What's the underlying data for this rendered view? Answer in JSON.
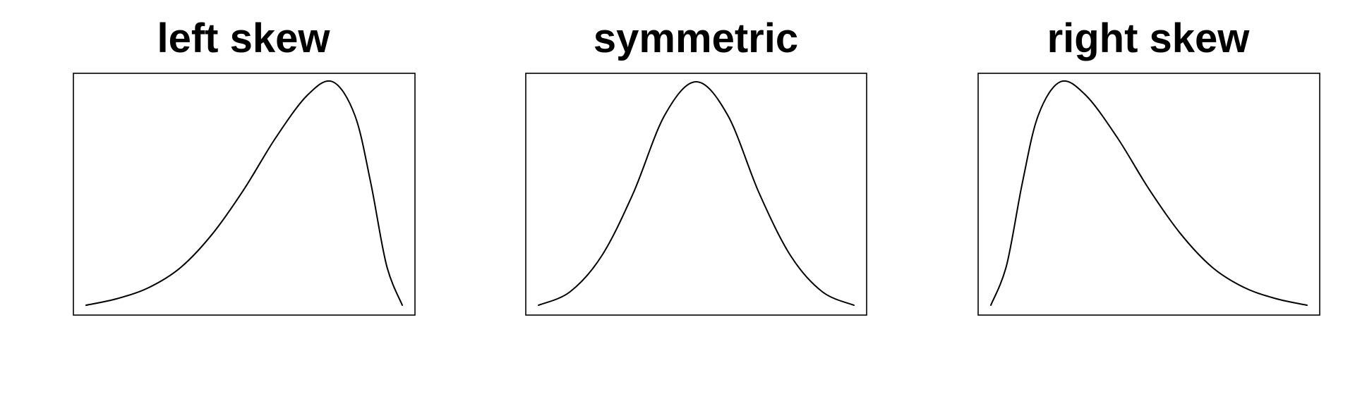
{
  "chart_data": [
    {
      "type": "line",
      "title": "left skew",
      "xlabel": "",
      "ylabel": "",
      "axes_shown": false,
      "grid": false,
      "x": [
        0,
        0.1,
        0.2,
        0.3,
        0.4,
        0.5,
        0.6,
        0.7,
        0.78,
        0.85,
        0.9,
        0.95,
        1
      ],
      "series": [
        {
          "values": [
            0.0,
            0.03,
            0.08,
            0.17,
            0.32,
            0.52,
            0.75,
            0.94,
            1.0,
            0.85,
            0.55,
            0.18,
            0.0
          ]
        }
      ],
      "ylim": [
        0,
        1
      ],
      "line_color": "#000000"
    },
    {
      "type": "line",
      "title": "symmetric",
      "xlabel": "",
      "ylabel": "",
      "axes_shown": false,
      "grid": false,
      "x": [
        0,
        0.1,
        0.2,
        0.3,
        0.4,
        0.5,
        0.6,
        0.7,
        0.8,
        0.9,
        1
      ],
      "series": [
        {
          "values": [
            0.0,
            0.06,
            0.22,
            0.5,
            0.85,
            1.0,
            0.85,
            0.5,
            0.22,
            0.06,
            0.0
          ]
        }
      ],
      "ylim": [
        0,
        1
      ],
      "line_color": "#000000"
    },
    {
      "type": "line",
      "title": "right skew",
      "xlabel": "",
      "ylabel": "",
      "axes_shown": false,
      "grid": false,
      "x": [
        0,
        0.05,
        0.1,
        0.15,
        0.22,
        0.3,
        0.4,
        0.5,
        0.6,
        0.7,
        0.8,
        0.9,
        1
      ],
      "series": [
        {
          "values": [
            0.0,
            0.18,
            0.55,
            0.85,
            1.0,
            0.94,
            0.75,
            0.52,
            0.32,
            0.17,
            0.08,
            0.03,
            0.0
          ]
        }
      ],
      "ylim": [
        0,
        1
      ],
      "line_color": "#000000"
    }
  ]
}
